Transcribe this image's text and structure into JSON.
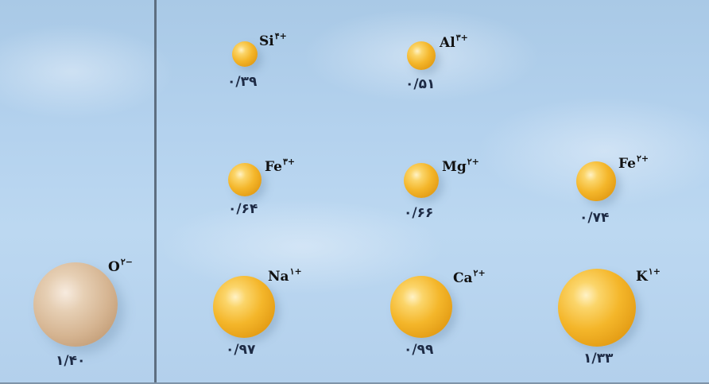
{
  "ions": [
    {
      "symbol": "Si",
      "charge": "۴+",
      "radius": "۰/۳۹"
    },
    {
      "symbol": "Al",
      "charge": "۳+",
      "radius": "۰/۵۱"
    },
    {
      "symbol": "Fe",
      "charge": "۳+",
      "radius": "۰/۶۴"
    },
    {
      "symbol": "Mg",
      "charge": "۲+",
      "radius": "۰/۶۶"
    },
    {
      "symbol": "Fe",
      "charge": "۲+",
      "radius": "۰/۷۴"
    },
    {
      "symbol": "O",
      "charge": "۲−",
      "radius": "۱/۴۰"
    },
    {
      "symbol": "Na",
      "charge": "۱+",
      "radius": "۰/۹۷"
    },
    {
      "symbol": "Ca",
      "charge": "۲+",
      "radius": "۰/۹۹"
    },
    {
      "symbol": "K",
      "charge": "۱+",
      "radius": "۱/۳۳"
    }
  ],
  "colors": {
    "cation": "#f4b62a",
    "anion": "#d5b491",
    "background": "#b4d2ee",
    "divider": "#5d6e80"
  }
}
